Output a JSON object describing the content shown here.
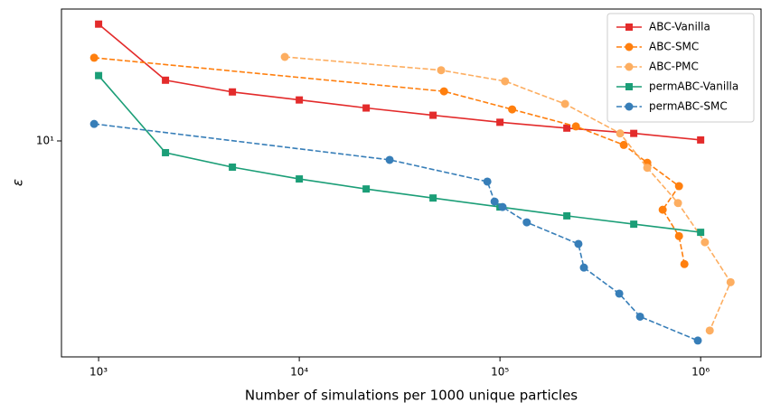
{
  "chart_data": {
    "type": "line",
    "xlabel": "Number of simulations per 1000 unique particles",
    "ylabel": "ε",
    "xscale": "log",
    "yscale": "log",
    "xlim": [
      653,
      2000000
    ],
    "ylim": [
      1.1,
      38.5
    ],
    "xticks": [
      {
        "value": 1000,
        "label": "10³"
      },
      {
        "value": 10000,
        "label": "10⁴"
      },
      {
        "value": 100000,
        "label": "10⁵"
      },
      {
        "value": 1000000,
        "label": "10⁶"
      }
    ],
    "yticks": [
      {
        "value": 10,
        "label": "10¹"
      }
    ],
    "legend": "upper right",
    "series": [
      {
        "name": "ABC-Vanilla",
        "color": "#e32b2b",
        "linestyle": "solid",
        "marker": "square",
        "x": [
          1000,
          2154,
          4642,
          10000,
          21544,
          46416,
          100000,
          215443,
          464159,
          1000000
        ],
        "values": [
          33.0,
          18.6,
          16.5,
          15.2,
          14.0,
          13.0,
          12.1,
          11.4,
          10.8,
          10.1
        ]
      },
      {
        "name": "ABC-SMC",
        "color": "#ff7f0e",
        "linestyle": "dashed",
        "marker": "circle",
        "x": [
          950,
          52600,
          115000,
          239000,
          414000,
          542000,
          780000,
          647000,
          780000,
          830000
        ],
        "values": [
          23.4,
          16.6,
          13.8,
          11.6,
          9.6,
          8.0,
          6.3,
          4.95,
          3.78,
          2.84
        ]
      },
      {
        "name": "ABC-PMC",
        "color": "#fdae61",
        "linestyle": "dashed",
        "marker": "circle",
        "x": [
          8470,
          50900,
          106000,
          211000,
          397000,
          542000,
          771000,
          1050000,
          1410000,
          1110000
        ],
        "values": [
          23.6,
          20.6,
          18.4,
          14.6,
          10.8,
          7.6,
          5.3,
          3.55,
          2.36,
          1.44
        ]
      },
      {
        "name": "permABC-Vanilla",
        "color": "#1b9e77",
        "linestyle": "solid",
        "marker": "square",
        "x": [
          1000,
          2154,
          4642,
          10000,
          21544,
          46416,
          100000,
          215443,
          464159,
          1000000
        ],
        "values": [
          19.5,
          8.87,
          7.65,
          6.78,
          6.12,
          5.58,
          5.09,
          4.65,
          4.27,
          3.93
        ]
      },
      {
        "name": "permABC-SMC",
        "color": "#377eb8",
        "linestyle": "dashed",
        "marker": "circle",
        "x": [
          950,
          28200,
          86500,
          94000,
          103000,
          136000,
          246000,
          262000,
          393000,
          499000,
          968000
        ],
        "values": [
          11.9,
          8.24,
          6.6,
          5.38,
          5.09,
          4.35,
          3.49,
          2.74,
          2.1,
          1.66,
          1.3
        ]
      }
    ]
  }
}
